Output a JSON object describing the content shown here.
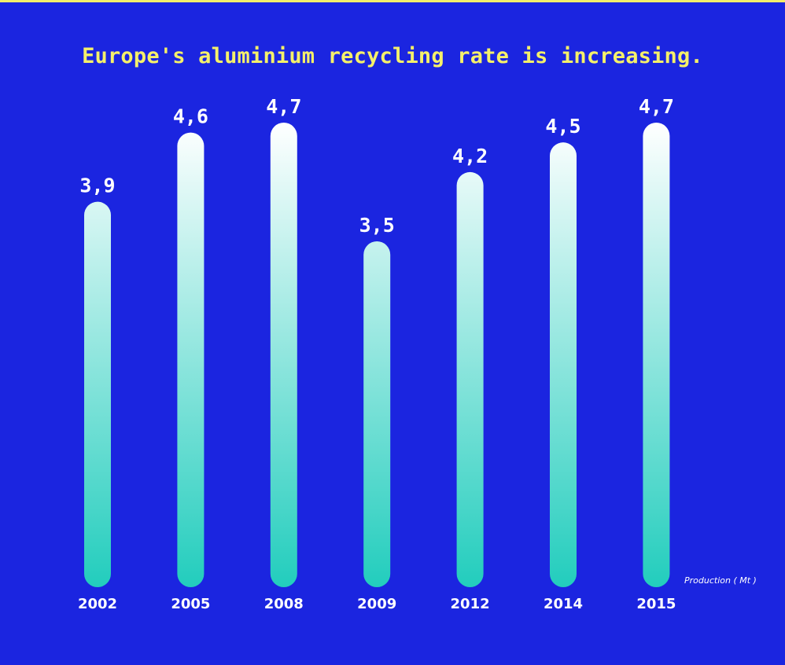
{
  "chart_data": {
    "type": "bar",
    "title": "Europe's aluminium recycling rate is increasing.",
    "categories": [
      "2002",
      "2005",
      "2008",
      "2009",
      "2012",
      "2014",
      "2015"
    ],
    "values": [
      3.9,
      4.6,
      4.7,
      3.5,
      4.2,
      4.5,
      4.7
    ],
    "value_labels": [
      "3,9",
      "4,6",
      "4,7",
      "3,5",
      "4,2",
      "4,5",
      "4,7"
    ],
    "unit_label": "Production ( Mt )",
    "xlabel": "",
    "ylabel": "",
    "ylim": [
      0,
      4.7
    ],
    "grid": false,
    "colors": {
      "background": "#1b25e0",
      "title": "#f5f06a",
      "bar_top": "#ffffff",
      "bar_bottom": "#22cdbd",
      "labels": "#ffffff"
    }
  }
}
